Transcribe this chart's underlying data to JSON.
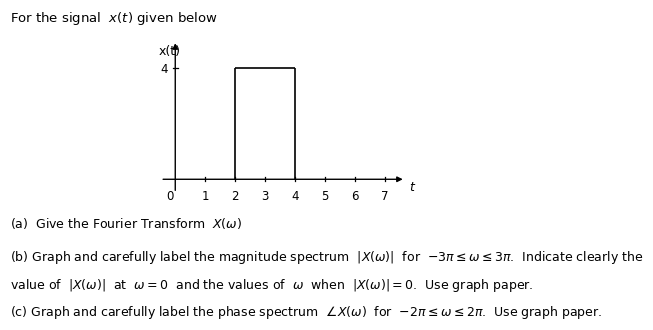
{
  "title_text": "For the signal  $x(t)$ given below",
  "xlabel": "t",
  "ylabel": "x(t)",
  "x_ticks": [
    0,
    1,
    2,
    3,
    4,
    5,
    6,
    7
  ],
  "y_tick_val": 4,
  "rect_x_start": 2,
  "rect_x_end": 4,
  "rect_height": 4,
  "x_axis_max": 7.7,
  "y_axis_max": 5.0,
  "line_color": "#000000",
  "background_color": "#ffffff",
  "text_color": "#000000",
  "part_a": "(a)  Give the Fourier Transform  $X\\left(\\omega\\right)$",
  "part_b": "(b) Graph and carefully label the magnitude spectrum  $\\left|X\\left(\\omega\\right)\\right|$  for  $-3\\pi \\leq \\omega \\leq 3\\pi$.  Indicate clearly the",
  "part_b2": "value of  $\\left|X\\left(\\omega\\right)\\right|$  at  $\\omega = 0$  and the values of  $\\omega$  when  $\\left|X\\left(\\omega\\right)\\right| = 0$.  Use graph paper.",
  "part_c": "(c) Graph and carefully label the phase spectrum  $\\angle X\\left(\\omega\\right)$  for  $-2\\pi \\leq \\omega \\leq 2\\pi$.  Use graph paper.",
  "fig_width": 6.73,
  "fig_height": 3.03,
  "font_size_title": 9.5,
  "font_size_body": 9.0,
  "font_size_axis": 8.5
}
